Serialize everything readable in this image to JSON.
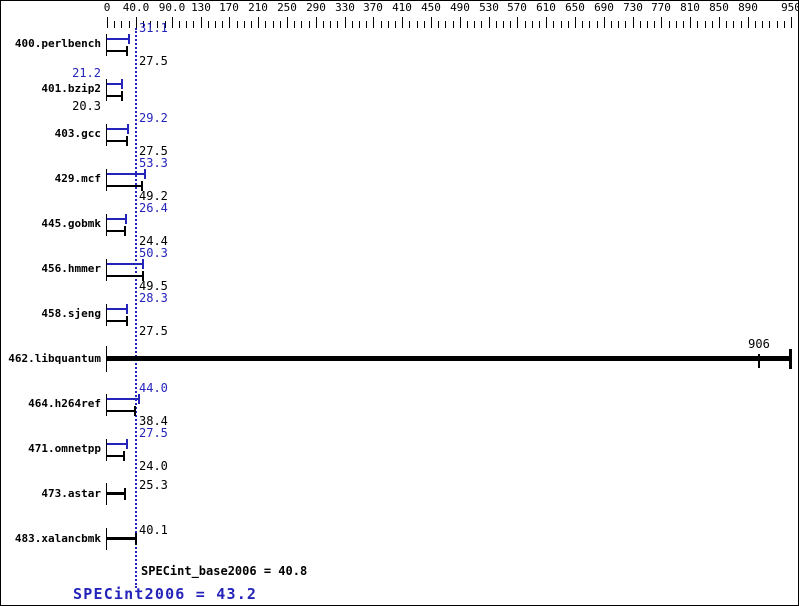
{
  "chart_data": {
    "type": "bar",
    "orientation": "horizontal",
    "title": "",
    "xlabel": "",
    "ylabel": "",
    "xlim": [
      0,
      950
    ],
    "grid": false,
    "legend_position": "none",
    "x_major_ticks": [
      {
        "value": 0,
        "label": "0"
      },
      {
        "value": 40,
        "label": "40.0"
      },
      {
        "value": 90,
        "label": "90.0"
      },
      {
        "value": 130,
        "label": "130"
      },
      {
        "value": 170,
        "label": "170"
      },
      {
        "value": 210,
        "label": "210"
      },
      {
        "value": 250,
        "label": "250"
      },
      {
        "value": 290,
        "label": "290"
      },
      {
        "value": 330,
        "label": "330"
      },
      {
        "value": 370,
        "label": "370"
      },
      {
        "value": 410,
        "label": "410"
      },
      {
        "value": 450,
        "label": "450"
      },
      {
        "value": 490,
        "label": "490"
      },
      {
        "value": 530,
        "label": "530"
      },
      {
        "value": 570,
        "label": "570"
      },
      {
        "value": 610,
        "label": "610"
      },
      {
        "value": 650,
        "label": "650"
      },
      {
        "value": 690,
        "label": "690"
      },
      {
        "value": 730,
        "label": "730"
      },
      {
        "value": 770,
        "label": "770"
      },
      {
        "value": 810,
        "label": "810"
      },
      {
        "value": 850,
        "label": "850"
      },
      {
        "value": 890,
        "label": "890"
      },
      {
        "value": 950,
        "label": "950"
      }
    ],
    "x_minor_tick_step": 10,
    "categories": [
      "400.perlbench",
      "401.bzip2",
      "403.gcc",
      "429.mcf",
      "445.gobmk",
      "456.hmmer",
      "458.sjeng",
      "462.libquantum",
      "464.h264ref",
      "471.omnetpp",
      "473.astar",
      "483.xalancbmk"
    ],
    "series": [
      {
        "name": "peak",
        "color": "#2424bb",
        "values": [
          31.1,
          21.2,
          29.2,
          53.3,
          26.4,
          50.3,
          28.3,
          null,
          44.0,
          27.5,
          null,
          null
        ]
      },
      {
        "name": "base",
        "color": "#000000",
        "values": [
          27.5,
          20.3,
          27.5,
          49.2,
          24.4,
          49.5,
          27.5,
          906,
          38.4,
          24.0,
          25.3,
          40.1
        ]
      }
    ],
    "benchmarks": [
      {
        "name": "400.perlbench",
        "style": "double",
        "peak": 31.1,
        "base": 27.5,
        "peak_label": "31.1",
        "base_label": "27.5",
        "label_side": "right"
      },
      {
        "name": "401.bzip2",
        "style": "double",
        "peak": 21.2,
        "base": 20.3,
        "peak_label": "21.2",
        "base_label": "20.3",
        "label_side": "left"
      },
      {
        "name": "403.gcc",
        "style": "double",
        "peak": 29.2,
        "base": 27.5,
        "peak_label": "29.2",
        "base_label": "27.5",
        "label_side": "right"
      },
      {
        "name": "429.mcf",
        "style": "double",
        "peak": 53.3,
        "base": 49.2,
        "peak_label": "53.3",
        "base_label": "49.2",
        "label_side": "right"
      },
      {
        "name": "445.gobmk",
        "style": "double",
        "peak": 26.4,
        "base": 24.4,
        "peak_label": "26.4",
        "base_label": "24.4",
        "label_side": "right"
      },
      {
        "name": "456.hmmer",
        "style": "double",
        "peak": 50.3,
        "base": 49.5,
        "peak_label": "50.3",
        "base_label": "49.5",
        "label_side": "right"
      },
      {
        "name": "458.sjeng",
        "style": "double",
        "peak": 28.3,
        "base": 27.5,
        "peak_label": "28.3",
        "base_label": "27.5",
        "label_side": "right"
      },
      {
        "name": "462.libquantum",
        "style": "single_clipped",
        "value": 906,
        "value_label": "906",
        "bar_draw_end": 950,
        "label_side": "tick"
      },
      {
        "name": "464.h264ref",
        "style": "double",
        "peak": 44.0,
        "base": 38.4,
        "peak_label": "44.0",
        "base_label": "38.4",
        "label_side": "right"
      },
      {
        "name": "471.omnetpp",
        "style": "double",
        "peak": 27.5,
        "base": 24.0,
        "peak_label": "27.5",
        "base_label": "24.0",
        "label_side": "right"
      },
      {
        "name": "473.astar",
        "style": "single",
        "value": 25.3,
        "value_label": "25.3",
        "label_side": "right"
      },
      {
        "name": "483.xalancbmk",
        "style": "single",
        "value": 40.1,
        "value_label": "40.1",
        "label_side": "right"
      }
    ],
    "mean_line": {
      "value": 40.8,
      "style": "dotted"
    },
    "specint_base2006": 40.8,
    "specint2006": 43.2,
    "summary": {
      "base_text": "SPECint_base2006 = 40.8",
      "peak_text": "SPECint2006 = 43.2"
    },
    "colors": {
      "peak_blue": "#2424bb",
      "base_black": "#000000",
      "background": "#ffffff"
    }
  }
}
